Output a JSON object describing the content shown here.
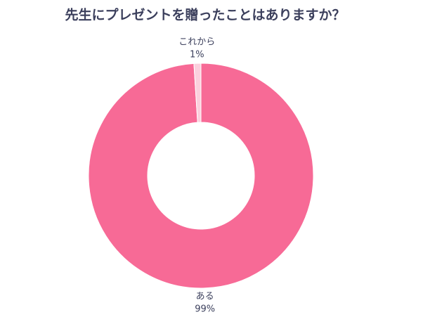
{
  "chart_data": {
    "type": "donut",
    "title": "先生にプレゼントを贈ったことはありますか？",
    "categories": [
      "ある",
      "これから"
    ],
    "values": [
      99,
      1
    ],
    "value_labels": [
      "99%",
      "1%"
    ],
    "colors": [
      "#f76a96",
      "#fbcfdd"
    ]
  }
}
